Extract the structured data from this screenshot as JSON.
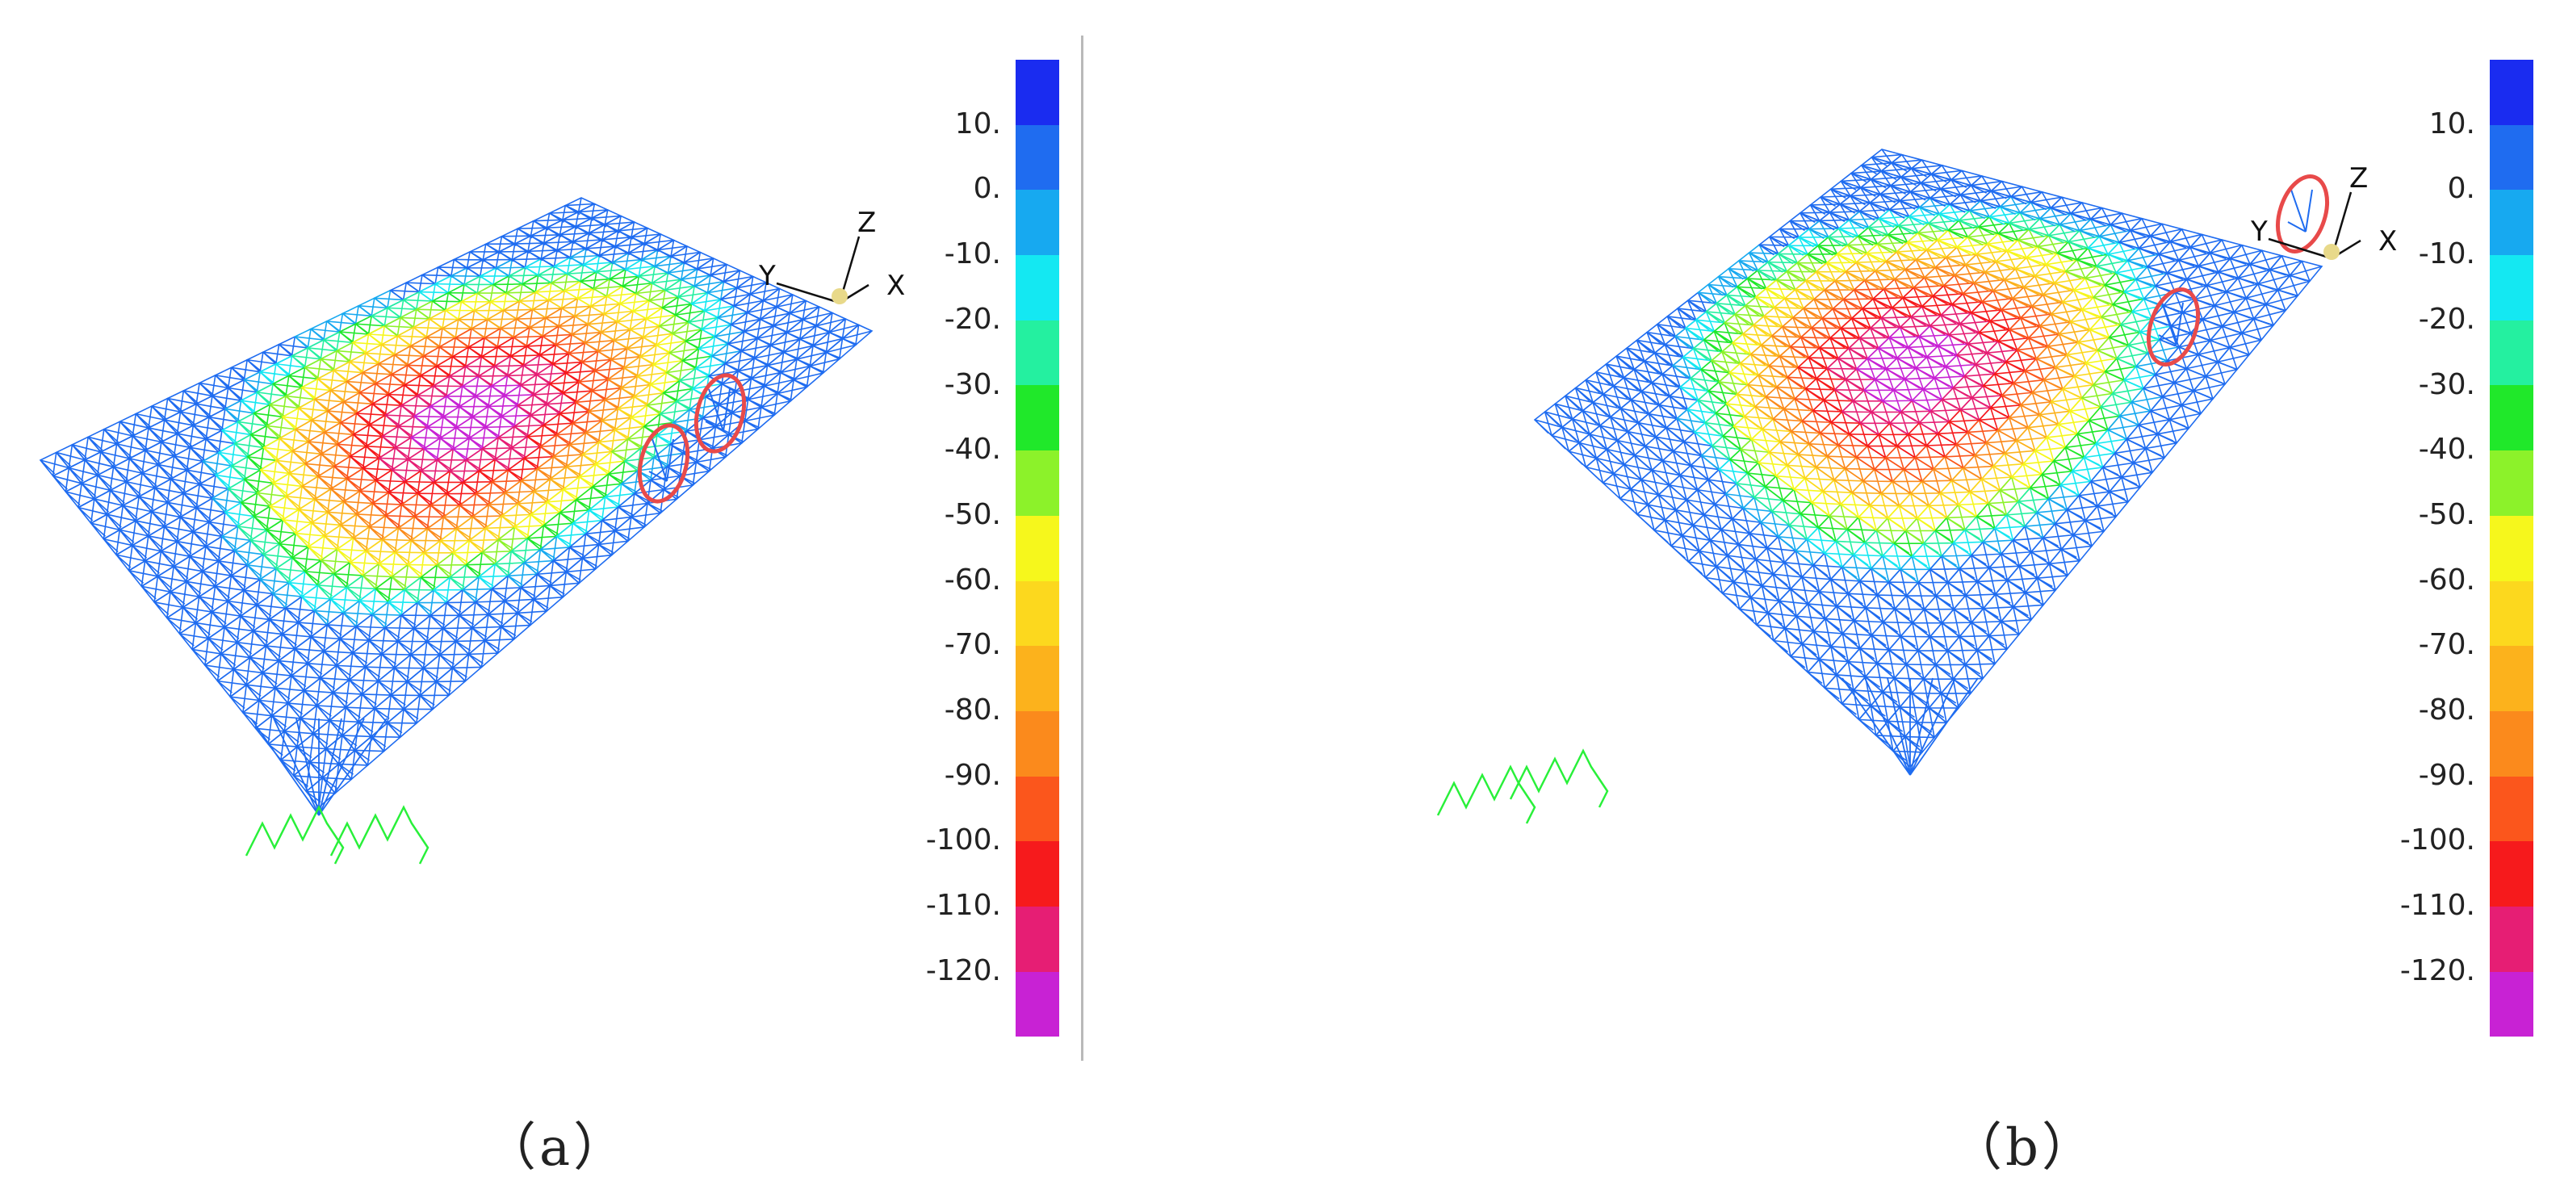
{
  "panels": [
    {
      "id": "a",
      "caption": "（a）",
      "axes": {
        "x": "X",
        "y": "Y",
        "z": "Z"
      },
      "flip": false,
      "circles": 2
    },
    {
      "id": "b",
      "caption": "（b）",
      "axes": {
        "x": "X",
        "y": "Y",
        "z": "Z"
      },
      "flip": true,
      "circles": 2
    }
  ],
  "scale": {
    "ticks": [
      "10.",
      "0.",
      "-10.",
      "-20.",
      "-30.",
      "-40.",
      "-50.",
      "-60.",
      "-70.",
      "-80.",
      "-90.",
      "-100.",
      "-110.",
      "-120."
    ],
    "colors": [
      "#1a2cf0",
      "#1f6cf0",
      "#17a9f0",
      "#14e8f2",
      "#24f0a0",
      "#20e82a",
      "#8cf22a",
      "#f6f71c",
      "#fcd81e",
      "#fcb21c",
      "#fb8a1c",
      "#fb561c",
      "#f61a1c",
      "#e61e74",
      "#c822d4"
    ]
  },
  "colors": {
    "highlight_circle": "#e84a4a",
    "support": "#29f03a",
    "divider": "#b9b9b9"
  }
}
